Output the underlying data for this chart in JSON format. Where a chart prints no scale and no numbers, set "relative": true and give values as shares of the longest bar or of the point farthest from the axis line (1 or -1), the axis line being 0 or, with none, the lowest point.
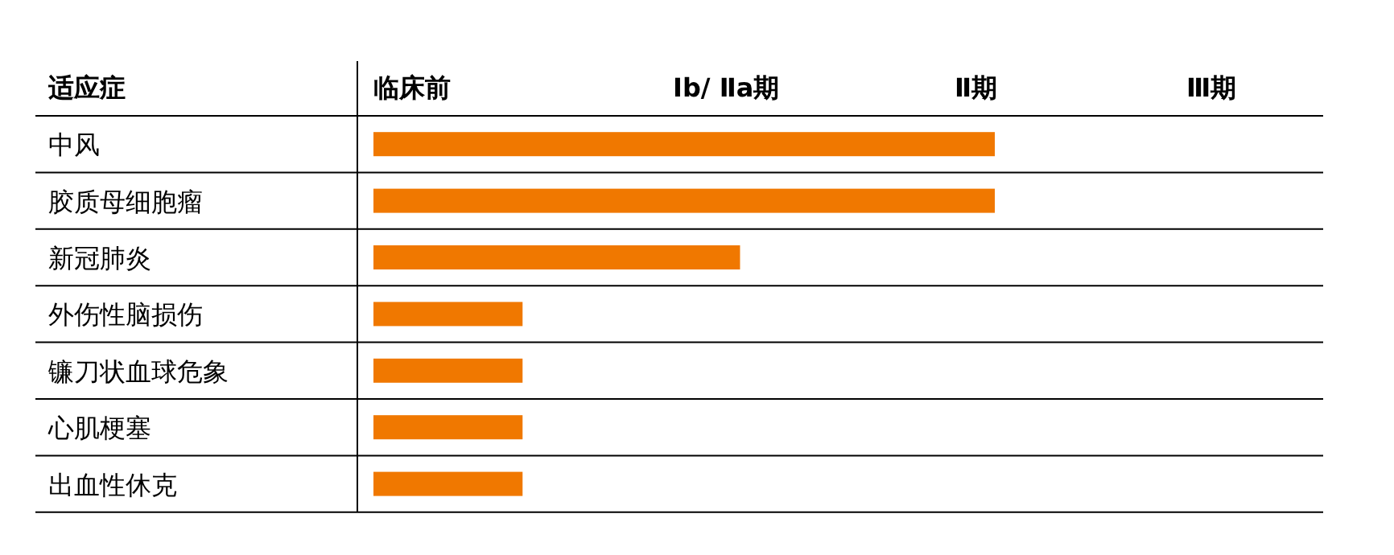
{
  "chart_data": {
    "type": "bar",
    "orientation": "horizontal",
    "relative": true,
    "grid": "y",
    "ylabel": "适应症",
    "annotations": [
      "临床前",
      "Ⅰb/ Ⅱa期",
      "Ⅱ期",
      "Ⅲ期"
    ],
    "categories": [
      "中风",
      "胶质母细胞瘤",
      "新冠肺炎",
      "外伤性脑损伤",
      "镰刀状血球危象",
      "心肌梗塞",
      "出血性休克"
    ],
    "values": [
      1,
      1,
      0.59,
      0.24,
      0.24,
      0.24,
      0.24
    ],
    "color": "#f07800"
  }
}
